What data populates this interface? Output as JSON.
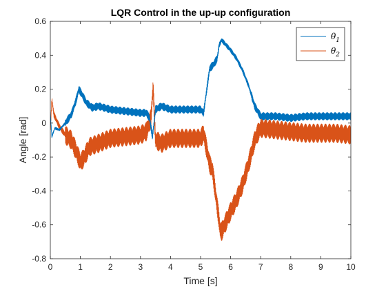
{
  "chart_data": {
    "type": "line",
    "title": "LQR Control in the up-up configuration",
    "xlabel": "Time [s]",
    "ylabel": "Angle [rad]",
    "xlim": [
      0,
      10
    ],
    "ylim": [
      -0.8,
      0.6
    ],
    "xticks": [
      0,
      1,
      2,
      3,
      4,
      5,
      6,
      7,
      8,
      9,
      10
    ],
    "yticks": [
      -0.8,
      -0.6,
      -0.4,
      -0.2,
      0,
      0.2,
      0.4,
      0.6
    ],
    "xtick_labels": [
      "0",
      "1",
      "2",
      "3",
      "4",
      "5",
      "6",
      "7",
      "8",
      "9",
      "10"
    ],
    "ytick_labels": [
      "-0.8",
      "-0.6",
      "-0.4",
      "-0.2",
      "0",
      "0.2",
      "0.4",
      "0.6"
    ],
    "grid": false,
    "legend_position": "top-right",
    "series": [
      {
        "name": "θ",
        "subscript": "1",
        "color": "#0072BD",
        "oscillation_amplitude": 0.022,
        "x": [
          0,
          0.05,
          0.15,
          0.3,
          0.5,
          0.7,
          0.85,
          0.95,
          1.05,
          1.2,
          1.4,
          1.6,
          2.0,
          2.5,
          3.0,
          3.2,
          3.3,
          3.4,
          3.5,
          3.7,
          4.0,
          4.5,
          5.0,
          5.1,
          5.3,
          5.45,
          5.55,
          5.62,
          5.7,
          5.85,
          6.0,
          6.2,
          6.4,
          6.6,
          6.8,
          6.9,
          7.0,
          7.5,
          8.0,
          8.5,
          9.0,
          9.5,
          10.0
        ],
        "y": [
          0.06,
          -0.08,
          -0.03,
          -0.04,
          0.0,
          0.05,
          0.13,
          0.2,
          0.17,
          0.12,
          0.09,
          0.1,
          0.08,
          0.07,
          0.06,
          0.06,
          0.03,
          -0.08,
          0.08,
          0.1,
          0.08,
          0.08,
          0.08,
          0.06,
          0.32,
          0.35,
          0.38,
          0.46,
          0.49,
          0.46,
          0.43,
          0.38,
          0.31,
          0.22,
          0.1,
          0.07,
          0.04,
          0.04,
          0.03,
          0.04,
          0.04,
          0.04,
          0.04
        ]
      },
      {
        "name": "θ",
        "subscript": "2",
        "color": "#D95319",
        "oscillation_amplitude": 0.055,
        "x": [
          0,
          0.05,
          0.12,
          0.3,
          0.5,
          0.7,
          0.85,
          1.0,
          1.1,
          1.3,
          1.6,
          2.0,
          2.5,
          3.0,
          3.2,
          3.35,
          3.42,
          3.5,
          3.7,
          4.0,
          4.5,
          5.0,
          5.1,
          5.3,
          5.4,
          5.5,
          5.6,
          5.65,
          5.7,
          5.85,
          6.0,
          6.2,
          6.4,
          6.6,
          6.8,
          6.9,
          7.0,
          7.5,
          8.0,
          8.5,
          9.0,
          9.5,
          10.0
        ],
        "y": [
          -0.05,
          0.14,
          0.05,
          -0.02,
          -0.07,
          -0.1,
          -0.16,
          -0.23,
          -0.21,
          -0.14,
          -0.12,
          -0.09,
          -0.08,
          -0.07,
          -0.05,
          0.03,
          0.21,
          -0.1,
          -0.12,
          -0.09,
          -0.09,
          -0.09,
          -0.06,
          -0.24,
          -0.28,
          -0.42,
          -0.55,
          -0.63,
          -0.64,
          -0.58,
          -0.52,
          -0.45,
          -0.36,
          -0.24,
          -0.1,
          -0.06,
          -0.03,
          -0.04,
          -0.05,
          -0.06,
          -0.06,
          -0.06,
          -0.07
        ]
      }
    ]
  }
}
